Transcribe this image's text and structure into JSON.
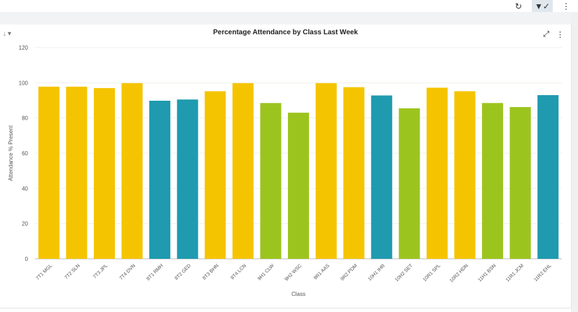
{
  "toolbar": {
    "refresh_icon": "refresh-icon",
    "filter_icon": "filter-check-icon",
    "menu_icon": "more-vertical-icon"
  },
  "panel": {
    "sort_icon": "sort-down-icon",
    "filter_icon": "filter-icon",
    "expand_icon": "expand-icon",
    "menu_icon": "more-vertical-icon"
  },
  "chart_data": {
    "type": "bar",
    "title": "Percentage Attendance by Class Last Week",
    "xlabel": "Class",
    "ylabel": "Attendance % Present",
    "ylim": [
      0,
      120
    ],
    "yticks": [
      0,
      20,
      40,
      60,
      80,
      100,
      120
    ],
    "grid": true,
    "categories": [
      "7T1 MGL",
      "7T2 SLN",
      "7T3 JPL",
      "7T4 DVN",
      "8T1 RMH",
      "8T2 GED",
      "8T3 BHN",
      "8T4 LCN",
      "9H1 CLW",
      "9H2 WSC",
      "9R1 AAS",
      "9R2 PDM",
      "10H1 IHR",
      "10H2 SET",
      "10R1 SPL",
      "10R2 HDN",
      "11H1 BSN",
      "11R1 JCM",
      "11R2 EHL"
    ],
    "values": [
      97.8,
      97.8,
      97,
      99.8,
      89.8,
      90.5,
      95.2,
      99.8,
      88.5,
      83,
      99.8,
      97.5,
      92.8,
      85.5,
      97.2,
      95.2,
      88.5,
      86.2,
      93
    ],
    "colors": [
      "#f5c400",
      "#f5c400",
      "#f5c400",
      "#f5c400",
      "#1f9aaf",
      "#1f9aaf",
      "#f5c400",
      "#f5c400",
      "#9cc41e",
      "#9cc41e",
      "#f5c400",
      "#f5c400",
      "#1f9aaf",
      "#9cc41e",
      "#f5c400",
      "#f5c400",
      "#9cc41e",
      "#9cc41e",
      "#1f9aaf"
    ]
  }
}
